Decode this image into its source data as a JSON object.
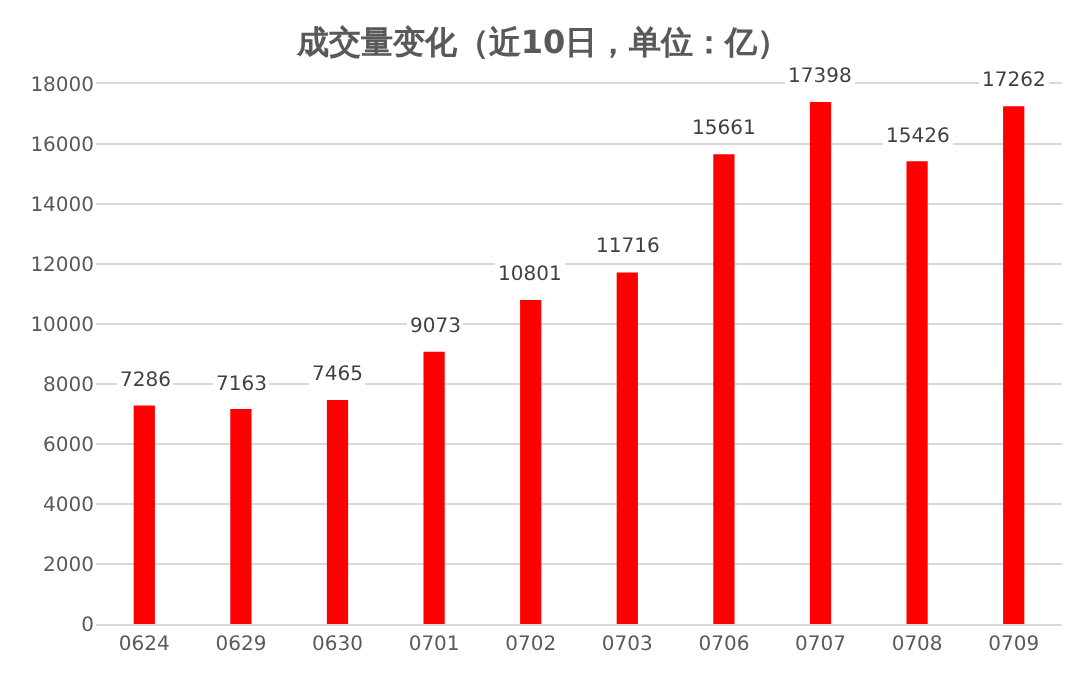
{
  "chart_data": {
    "type": "bar",
    "title": "成交量变化（近10日，单位：亿）",
    "categories": [
      "0624",
      "0629",
      "0630",
      "0701",
      "0702",
      "0703",
      "0706",
      "0707",
      "0708",
      "0709"
    ],
    "values": [
      7286,
      7163,
      7465,
      9073,
      10801,
      11716,
      15661,
      17398,
      15426,
      17262
    ],
    "color": "#ff0000",
    "ylim": [
      0,
      18000
    ],
    "yticks": [
      0,
      2000,
      4000,
      6000,
      8000,
      10000,
      12000,
      14000,
      16000,
      18000
    ],
    "grid": "y",
    "data_labels": true
  }
}
